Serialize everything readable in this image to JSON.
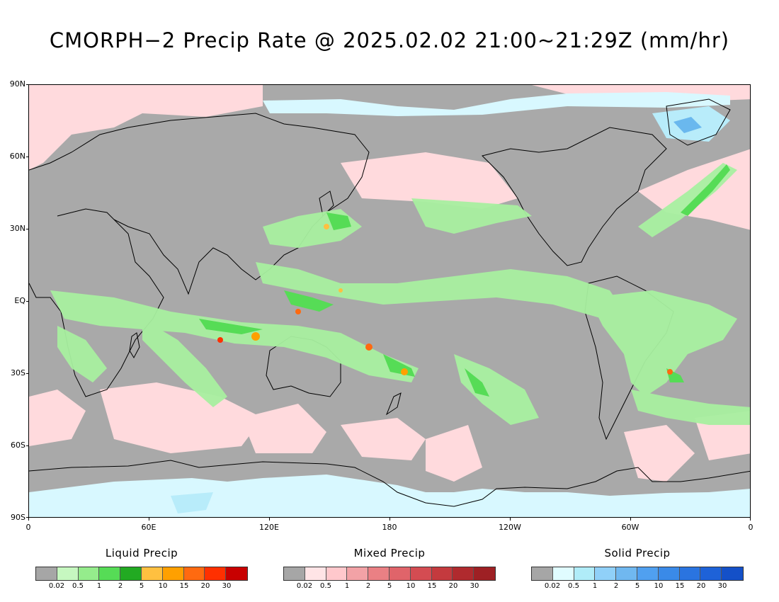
{
  "title": "CMORPH−2 Precip Rate @ 2025.02.02 21:00~21:29Z (mm/hr)",
  "map": {
    "lat_labels": [
      "90N",
      "60N",
      "30N",
      "EQ",
      "30S",
      "60S",
      "90S"
    ],
    "lon_labels": [
      "0",
      "60E",
      "120E",
      "180",
      "120W",
      "60W",
      "0"
    ],
    "lat_range": [
      -90,
      90
    ],
    "lon_range": [
      0,
      360
    ],
    "background_color": "#a9a9a9"
  },
  "legends": [
    {
      "title": "Liquid Precip",
      "colors": [
        "#a6a6a6",
        "#c6f7c0",
        "#95ec8c",
        "#56dc56",
        "#22aa22",
        "#ffc040",
        "#ffa000",
        "#ff6a10",
        "#ff3000",
        "#c80000"
      ],
      "ticks": [
        "0.02",
        "0.5",
        "1",
        "2",
        "5",
        "10",
        "15",
        "20",
        "30"
      ]
    },
    {
      "title": "Mixed Precip",
      "colors": [
        "#a6a6a6",
        "#ffe4e6",
        "#ffc8cc",
        "#f2a2a6",
        "#ea8084",
        "#e0646a",
        "#d44c52",
        "#c43a3e",
        "#b02a2e",
        "#9e2024"
      ],
      "ticks": [
        "0.02",
        "0.5",
        "1",
        "2",
        "5",
        "10",
        "15",
        "20",
        "30"
      ]
    },
    {
      "title": "Solid Precip",
      "colors": [
        "#a6a6a6",
        "#e0fcff",
        "#b0ecf8",
        "#90d0f8",
        "#70b8f0",
        "#50a0f0",
        "#3a8ae8",
        "#2a74e0",
        "#1e62d8",
        "#1450c8"
      ],
      "ticks": [
        "0.02",
        "0.5",
        "1",
        "2",
        "5",
        "10",
        "15",
        "20",
        "30"
      ]
    }
  ]
}
